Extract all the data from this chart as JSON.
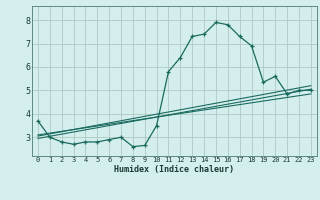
{
  "title": "",
  "xlabel": "Humidex (Indice chaleur)",
  "ylabel": "",
  "background_color": "#d4eeed",
  "grid_color": "#aec8c4",
  "line_color": "#1a6b5e",
  "xlim": [
    -0.5,
    23.5
  ],
  "ylim": [
    2.2,
    8.6
  ],
  "yticks": [
    3,
    4,
    5,
    6,
    7,
    8
  ],
  "xticks": [
    0,
    1,
    2,
    3,
    4,
    5,
    6,
    7,
    8,
    9,
    10,
    11,
    12,
    13,
    14,
    15,
    16,
    17,
    18,
    19,
    20,
    21,
    22,
    23
  ],
  "series": [
    [
      0,
      3.7
    ],
    [
      1,
      3.0
    ],
    [
      2,
      2.8
    ],
    [
      3,
      2.7
    ],
    [
      4,
      2.8
    ],
    [
      5,
      2.8
    ],
    [
      6,
      2.9
    ],
    [
      7,
      3.0
    ],
    [
      8,
      2.6
    ],
    [
      9,
      2.65
    ],
    [
      10,
      3.5
    ],
    [
      11,
      5.8
    ],
    [
      12,
      6.4
    ],
    [
      13,
      7.3
    ],
    [
      14,
      7.4
    ],
    [
      15,
      7.9
    ],
    [
      16,
      7.8
    ],
    [
      17,
      7.3
    ],
    [
      18,
      6.9
    ],
    [
      19,
      5.35
    ],
    [
      20,
      5.6
    ],
    [
      21,
      4.85
    ],
    [
      22,
      5.0
    ],
    [
      23,
      5.0
    ]
  ],
  "linear_series": [
    [
      0,
      2.95
    ],
    [
      23,
      5.05
    ]
  ],
  "linear_series2": [
    [
      0,
      3.05
    ],
    [
      23,
      5.2
    ]
  ],
  "linear_series3": [
    [
      0,
      3.1
    ],
    [
      23,
      4.85
    ]
  ]
}
